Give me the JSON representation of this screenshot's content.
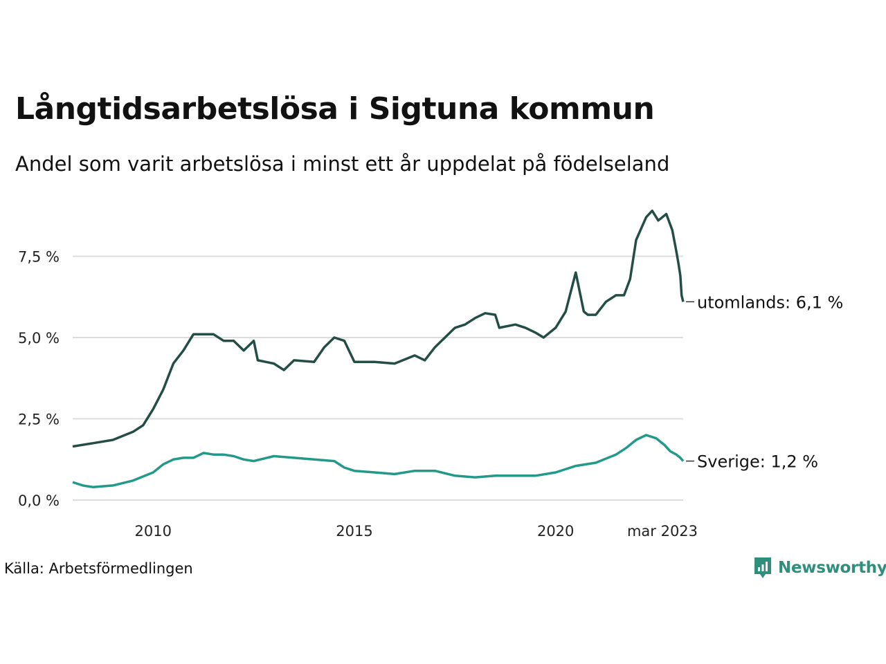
{
  "title": "Långtidsarbetslösa i Sigtuna kommun",
  "subtitle": "Andel som varit arbetslösa i minst ett år uppdelat på födelseland",
  "source": "Källa: Arbetsförmedlingen",
  "brand": "Newsworthy",
  "colors": {
    "brand": "#2f8f7d",
    "grid": "#dddddd"
  },
  "chart_data": {
    "type": "line",
    "title": "Långtidsarbetslösa i Sigtuna kommun",
    "subtitle": "Andel som varit arbetslösa i minst ett år uppdelat på födelseland",
    "ylim": [
      0,
      9
    ],
    "yticks": [
      0,
      2.5,
      5,
      7.5
    ],
    "ytick_labels": [
      "0,0 %",
      "2,5 %",
      "5,0 %",
      "7,5 %"
    ],
    "xlim": [
      2008.0,
      2023.17
    ],
    "xticks": [
      2010,
      2015,
      2020,
      2023.17
    ],
    "xtick_labels": [
      "2010",
      "2015",
      "2020",
      "mar 2023"
    ],
    "grid": true,
    "legend": "none",
    "series": [
      {
        "name": "utomlands",
        "end_label": "utomlands: 6,1 %",
        "color": "#234d45",
        "points": [
          [
            2008.0,
            1.65
          ],
          [
            2008.5,
            1.75
          ],
          [
            2009.0,
            1.85
          ],
          [
            2009.5,
            2.1
          ],
          [
            2009.75,
            2.3
          ],
          [
            2010.0,
            2.8
          ],
          [
            2010.25,
            3.4
          ],
          [
            2010.5,
            4.2
          ],
          [
            2010.75,
            4.6
          ],
          [
            2011.0,
            5.1
          ],
          [
            2011.5,
            5.1
          ],
          [
            2011.75,
            4.9
          ],
          [
            2012.0,
            4.9
          ],
          [
            2012.25,
            4.6
          ],
          [
            2012.5,
            4.9
          ],
          [
            2012.6,
            4.3
          ],
          [
            2013.0,
            4.2
          ],
          [
            2013.25,
            4.0
          ],
          [
            2013.5,
            4.3
          ],
          [
            2014.0,
            4.25
          ],
          [
            2014.25,
            4.7
          ],
          [
            2014.5,
            5.0
          ],
          [
            2014.75,
            4.9
          ],
          [
            2015.0,
            4.25
          ],
          [
            2015.5,
            4.25
          ],
          [
            2016.0,
            4.2
          ],
          [
            2016.5,
            4.45
          ],
          [
            2016.75,
            4.3
          ],
          [
            2017.0,
            4.7
          ],
          [
            2017.25,
            5.0
          ],
          [
            2017.5,
            5.3
          ],
          [
            2017.75,
            5.4
          ],
          [
            2018.0,
            5.6
          ],
          [
            2018.25,
            5.75
          ],
          [
            2018.5,
            5.7
          ],
          [
            2018.6,
            5.3
          ],
          [
            2019.0,
            5.4
          ],
          [
            2019.25,
            5.3
          ],
          [
            2019.5,
            5.15
          ],
          [
            2019.7,
            5.0
          ],
          [
            2020.0,
            5.3
          ],
          [
            2020.25,
            5.8
          ],
          [
            2020.5,
            7.0
          ],
          [
            2020.7,
            5.8
          ],
          [
            2020.8,
            5.7
          ],
          [
            2021.0,
            5.7
          ],
          [
            2021.25,
            6.1
          ],
          [
            2021.5,
            6.3
          ],
          [
            2021.7,
            6.3
          ],
          [
            2021.85,
            6.8
          ],
          [
            2022.0,
            8.0
          ],
          [
            2022.25,
            8.7
          ],
          [
            2022.4,
            8.9
          ],
          [
            2022.55,
            8.6
          ],
          [
            2022.75,
            8.8
          ],
          [
            2022.9,
            8.3
          ],
          [
            2023.0,
            7.65
          ],
          [
            2023.05,
            7.3
          ],
          [
            2023.1,
            6.9
          ],
          [
            2023.13,
            6.3
          ],
          [
            2023.17,
            6.1
          ]
        ]
      },
      {
        "name": "Sverige",
        "end_label": "Sverige: 1,2 %",
        "color": "#23998a",
        "points": [
          [
            2008.0,
            0.55
          ],
          [
            2008.25,
            0.45
          ],
          [
            2008.5,
            0.4
          ],
          [
            2009.0,
            0.45
          ],
          [
            2009.5,
            0.6
          ],
          [
            2010.0,
            0.85
          ],
          [
            2010.25,
            1.1
          ],
          [
            2010.5,
            1.25
          ],
          [
            2010.75,
            1.3
          ],
          [
            2011.0,
            1.3
          ],
          [
            2011.25,
            1.45
          ],
          [
            2011.5,
            1.4
          ],
          [
            2011.75,
            1.4
          ],
          [
            2012.0,
            1.35
          ],
          [
            2012.25,
            1.25
          ],
          [
            2012.5,
            1.2
          ],
          [
            2013.0,
            1.35
          ],
          [
            2013.5,
            1.3
          ],
          [
            2014.0,
            1.25
          ],
          [
            2014.5,
            1.2
          ],
          [
            2014.75,
            1.0
          ],
          [
            2015.0,
            0.9
          ],
          [
            2015.5,
            0.85
          ],
          [
            2016.0,
            0.8
          ],
          [
            2016.5,
            0.9
          ],
          [
            2017.0,
            0.9
          ],
          [
            2017.5,
            0.75
          ],
          [
            2018.0,
            0.7
          ],
          [
            2018.5,
            0.75
          ],
          [
            2019.0,
            0.75
          ],
          [
            2019.5,
            0.75
          ],
          [
            2020.0,
            0.85
          ],
          [
            2020.5,
            1.05
          ],
          [
            2021.0,
            1.15
          ],
          [
            2021.5,
            1.4
          ],
          [
            2021.75,
            1.6
          ],
          [
            2022.0,
            1.85
          ],
          [
            2022.25,
            2.0
          ],
          [
            2022.5,
            1.9
          ],
          [
            2022.7,
            1.7
          ],
          [
            2022.85,
            1.5
          ],
          [
            2023.0,
            1.4
          ],
          [
            2023.1,
            1.3
          ],
          [
            2023.17,
            1.2
          ]
        ]
      }
    ]
  }
}
